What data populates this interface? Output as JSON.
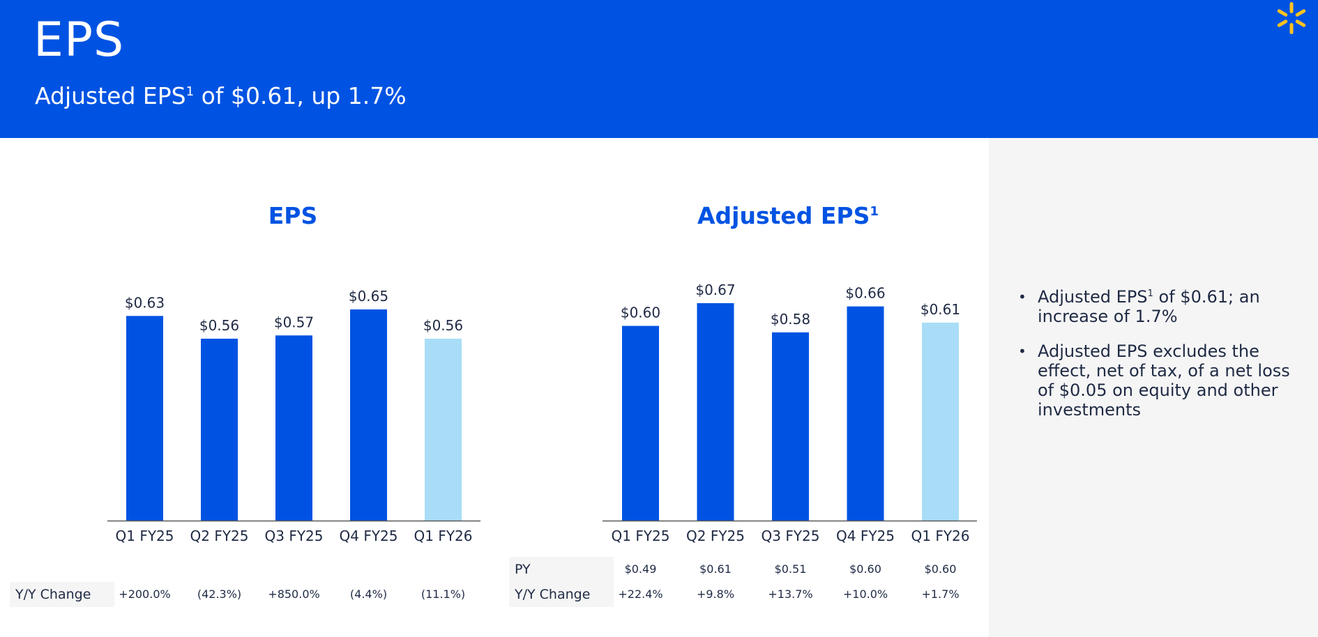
{
  "header": {
    "title": "EPS",
    "subtitle_main": "Adjusted EPS",
    "subtitle_sup": "1",
    "subtitle_rest": " of $0.61, up 1.7%",
    "logo_icon": "spark-icon"
  },
  "colors": {
    "brand_blue": "#0053e2",
    "current_bar": "#a9ddf7",
    "spark_yellow": "#ffc220",
    "panel_bg": "#f5f5f5"
  },
  "sidebar": {
    "bullets": [
      {
        "main": "Adjusted EPS",
        "sup": "1",
        "rest": " of $0.61; an increase of 1.7%"
      },
      {
        "main": "Adjusted EPS excludes the effect, net of tax, of a net loss of $0.05 on equity and other investments",
        "sup": "",
        "rest": ""
      }
    ]
  },
  "chart_data": [
    {
      "type": "bar",
      "title": "EPS",
      "title_sup": "",
      "categories": [
        "Q1 FY25",
        "Q2 FY25",
        "Q3 FY25",
        "Q4 FY25",
        "Q1 FY26"
      ],
      "values": [
        0.63,
        0.56,
        0.57,
        0.65,
        0.56
      ],
      "value_labels": [
        "$0.63",
        "$0.56",
        "$0.57",
        "$0.65",
        "$0.56"
      ],
      "highlight_index": 4,
      "ylim": [
        0,
        0.65
      ],
      "xlabel": "",
      "ylabel": "",
      "table_rows": [
        {
          "label": "Y/Y Change",
          "values": [
            "+200.0%",
            "(42.3%)",
            "+850.0%",
            "(4.4%)",
            "(11.1%)"
          ]
        }
      ]
    },
    {
      "type": "bar",
      "title": "Adjusted EPS",
      "title_sup": "1",
      "categories": [
        "Q1 FY25",
        "Q2 FY25",
        "Q3 FY25",
        "Q4 FY25",
        "Q1 FY26"
      ],
      "values": [
        0.6,
        0.67,
        0.58,
        0.66,
        0.61
      ],
      "value_labels": [
        "$0.60",
        "$0.67",
        "$0.58",
        "$0.66",
        "$0.61"
      ],
      "highlight_index": 4,
      "ylim": [
        0,
        0.67
      ],
      "xlabel": "",
      "ylabel": "",
      "table_rows": [
        {
          "label": "PY",
          "values": [
            "$0.49",
            "$0.61",
            "$0.51",
            "$0.60",
            "$0.60"
          ]
        },
        {
          "label": "Y/Y Change",
          "values": [
            "+22.4%",
            "+9.8%",
            "+13.7%",
            "+10.0%",
            "+1.7%"
          ]
        }
      ]
    }
  ]
}
